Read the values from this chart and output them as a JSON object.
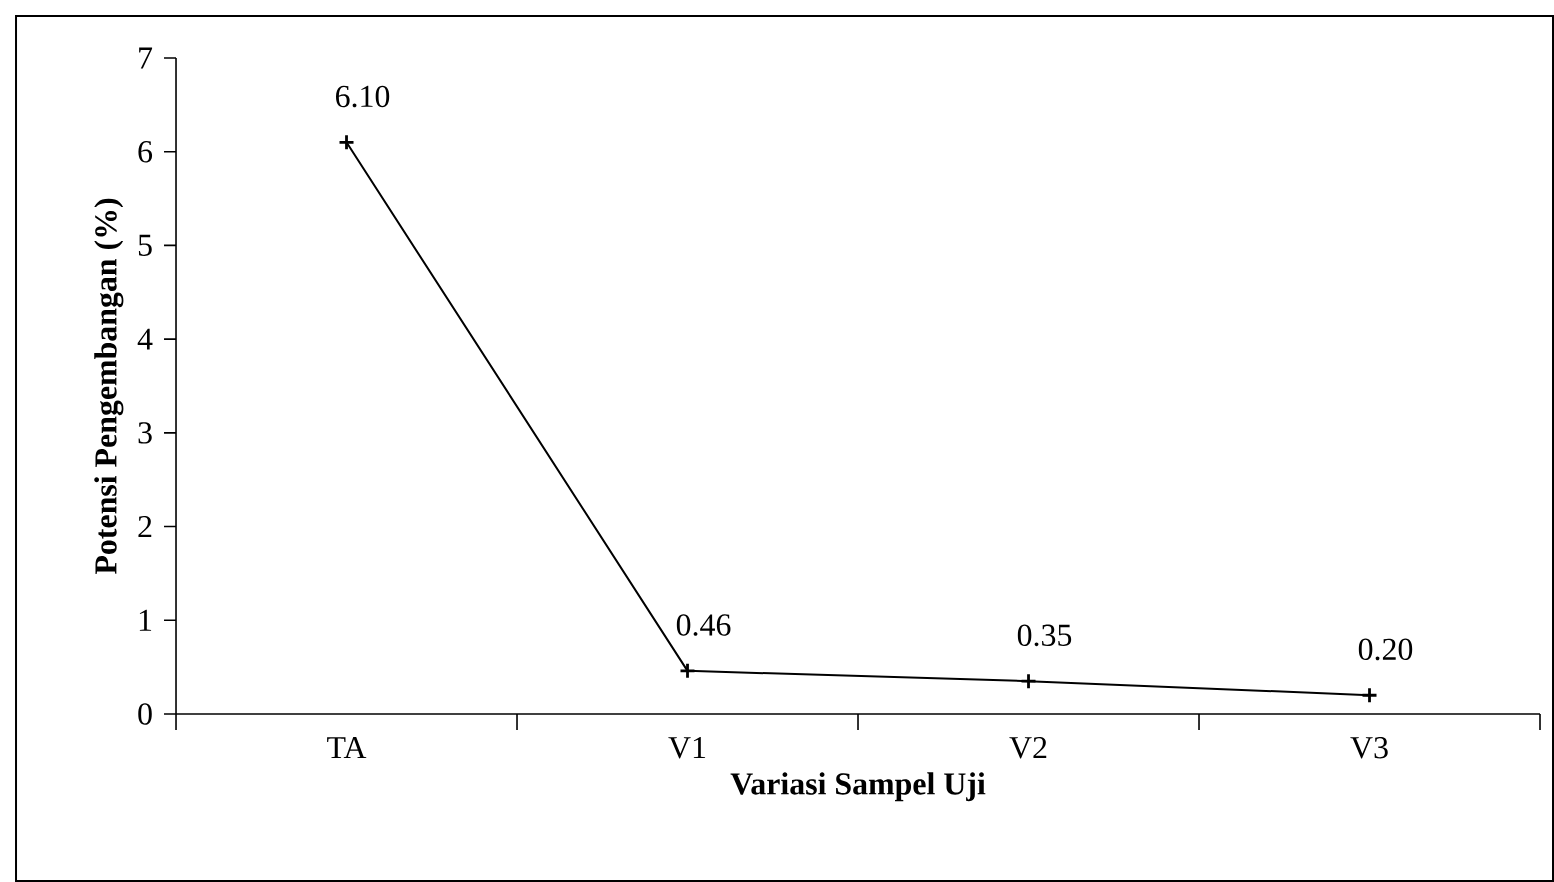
{
  "chart_data": {
    "type": "line",
    "xlabel": "Variasi Sampel Uji",
    "ylabel": "Potensi Pengembangan (%)",
    "categories": [
      "TA",
      "V1",
      "V2",
      "V3"
    ],
    "series": [
      {
        "color": "#000000",
        "values": [
          6.1,
          0.46,
          0.35,
          0.2
        ]
      }
    ],
    "value_labels": [
      "6.10",
      "0.46",
      "0.35",
      "0.20"
    ],
    "ylim": [
      0,
      7
    ],
    "yticks": [
      0,
      1,
      2,
      3,
      4,
      5,
      6,
      7
    ],
    "grid": false,
    "marker": "cross",
    "line_style": "solid"
  }
}
